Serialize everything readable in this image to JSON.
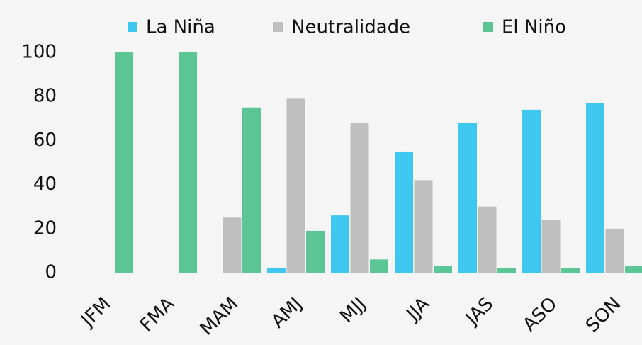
{
  "chart_data": {
    "type": "bar",
    "categories": [
      "JFM",
      "FMA",
      "MAM",
      "AMJ",
      "MJJ",
      "JJA",
      "JAS",
      "ASO",
      "SON"
    ],
    "series": [
      {
        "name": "La Niña",
        "color": "#3ec8ef",
        "values": [
          0,
          0,
          0,
          2,
          26,
          55,
          68,
          74,
          77
        ]
      },
      {
        "name": "Neutralidade",
        "color": "#bfbfbf",
        "values": [
          0,
          0,
          25,
          79,
          68,
          42,
          30,
          24,
          20
        ]
      },
      {
        "name": "El Niño",
        "color": "#5bc595",
        "values": [
          100,
          100,
          75,
          19,
          6,
          3,
          2,
          2,
          3
        ]
      }
    ],
    "ylim": [
      0,
      100
    ],
    "yticks": [
      0,
      20,
      40,
      60,
      80,
      100
    ],
    "grid": false,
    "legend": "top"
  }
}
